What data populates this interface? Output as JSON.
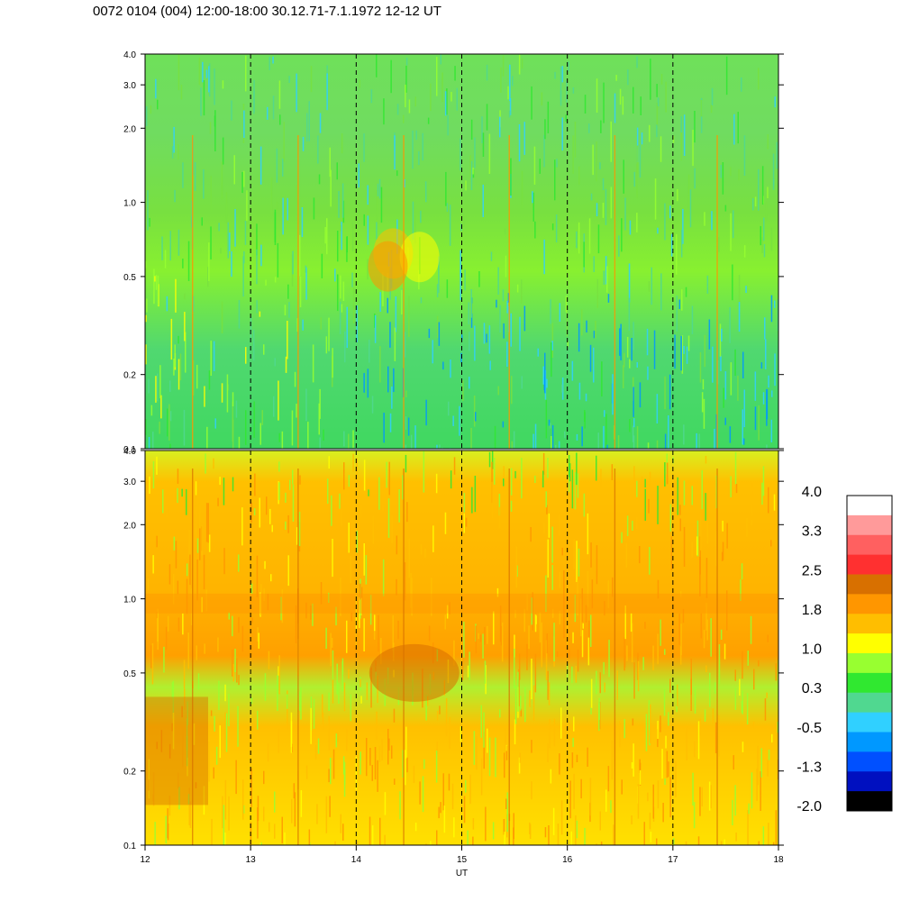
{
  "title": "0072 0104 (004) 12:00-18:00 30.12.71-7.1.1972  12-12 UT",
  "chart_data": [
    {
      "type": "heatmap",
      "panel": "top",
      "x_range": [
        12,
        18
      ],
      "y_range": [
        0.1,
        4.0
      ],
      "y_scale": "log",
      "y_tick_labels": [
        "4.0",
        "3.0",
        "2.0",
        "1.0",
        "0.5",
        "0.2",
        "0.1"
      ],
      "y_ticks": [
        4.0,
        3.0,
        2.0,
        1.0,
        0.5,
        0.2,
        0.1
      ],
      "vertical_dashed_lines_at": [
        13,
        14,
        15,
        16,
        17
      ],
      "dominant_levels": "green/cyan (~0 to 0.5) with blue patches at low y after 14 UT and yellow at low y before 14 UT"
    },
    {
      "type": "heatmap",
      "panel": "bottom",
      "x_range": [
        12,
        18
      ],
      "y_range": [
        0.1,
        4.0
      ],
      "y_scale": "log",
      "y_tick_labels": [
        "4.0",
        "3.0",
        "2.0",
        "1.0",
        "0.5",
        "0.2",
        "0.1"
      ],
      "y_ticks": [
        4.0,
        3.0,
        2.0,
        1.0,
        0.5,
        0.2,
        0.1
      ],
      "vertical_dashed_lines_at": [
        13,
        14,
        15,
        16,
        17
      ],
      "x_tick_labels": [
        "12",
        "13",
        "14",
        "15",
        "16",
        "17",
        "18"
      ],
      "x_ticks": [
        12,
        13,
        14,
        15,
        16,
        17,
        18
      ],
      "xlabel": "UT",
      "dominant_levels": "orange/yellow (~1 to 2) with green at high y, orange band near 1.0 and dark orange near 0.5 around 14-15 UT"
    }
  ],
  "colorbar": {
    "labels": [
      "4.0",
      "3.3",
      "2.5",
      "1.8",
      "1.0",
      "0.3",
      "-0.5",
      "-1.3",
      "-2.0"
    ],
    "colors_top_to_bottom": [
      "#ffffff",
      "#ff9a9a",
      "#ff6060",
      "#ff3030",
      "#d87000",
      "#ff9600",
      "#ffbe00",
      "#ffff00",
      "#98ff30",
      "#30e830",
      "#50d890",
      "#30d0ff",
      "#0098ff",
      "#0050ff",
      "#0010c0",
      "#000000"
    ]
  }
}
